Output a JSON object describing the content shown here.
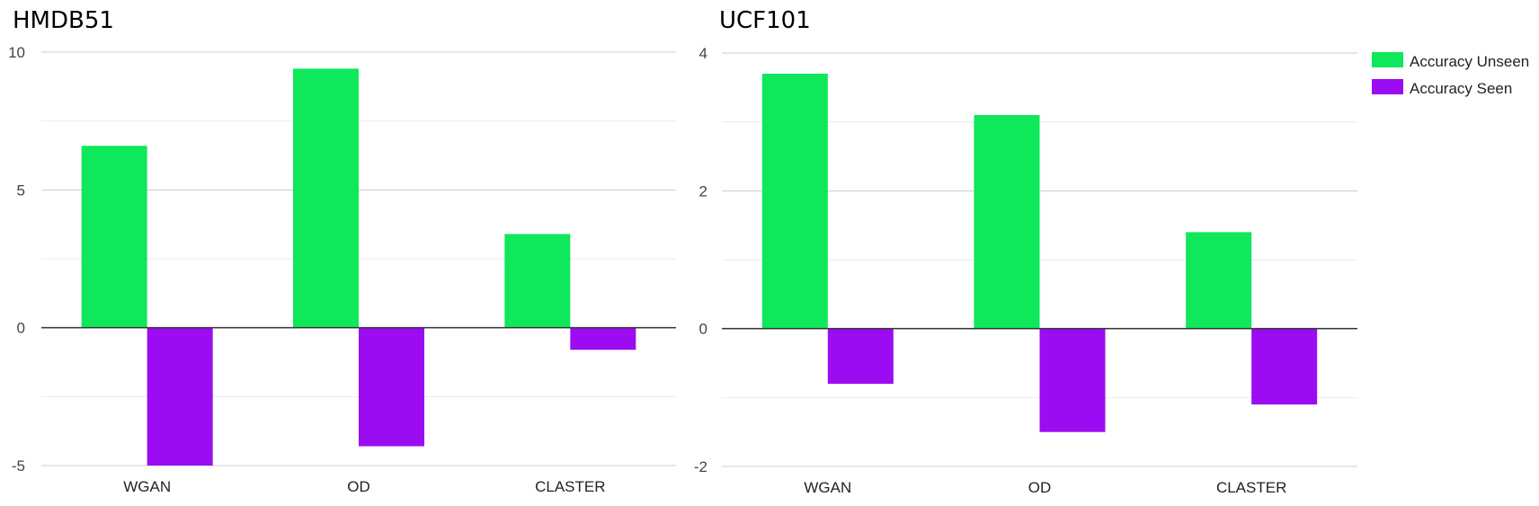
{
  "colors": {
    "accuracy_unseen": "#0ee85a",
    "accuracy_seen": "#9b0cf2",
    "grid_major": "#cccccc",
    "grid_minor": "#ebebeb",
    "zero_line": "#333333"
  },
  "legend": {
    "items": [
      {
        "label": "Accuracy Unseen",
        "color_key": "accuracy_unseen"
      },
      {
        "label": "Accuracy Seen",
        "color_key": "accuracy_seen"
      }
    ],
    "placement": "right"
  },
  "chart_data": [
    {
      "type": "bar",
      "title": "HMDB51",
      "categories": [
        "WGAN",
        "OD",
        "CLASTER"
      ],
      "series": [
        {
          "name": "Accuracy Unseen",
          "values": [
            6.6,
            9.4,
            3.4
          ]
        },
        {
          "name": "Accuracy Seen",
          "values": [
            -5.0,
            -4.3,
            -0.8
          ]
        }
      ],
      "ylim": [
        -5,
        10
      ],
      "yticks": [
        {
          "value": 10,
          "label": "10"
        },
        {
          "value": 5,
          "label": "5"
        },
        {
          "value": 0,
          "label": "0"
        },
        {
          "value": -5,
          "label": "-5"
        }
      ],
      "minor_gridlines": [
        7.5,
        2.5,
        -2.5
      ],
      "grid": true
    },
    {
      "type": "bar",
      "title": "UCF101",
      "categories": [
        "WGAN",
        "OD",
        "CLASTER"
      ],
      "series": [
        {
          "name": "Accuracy Unseen",
          "values": [
            3.7,
            3.1,
            1.4
          ]
        },
        {
          "name": "Accuracy Seen",
          "values": [
            -0.8,
            -1.5,
            -1.1
          ]
        }
      ],
      "ylim": [
        -2,
        4
      ],
      "yticks": [
        {
          "value": 4,
          "label": "4"
        },
        {
          "value": 2,
          "label": "2"
        },
        {
          "value": 0,
          "label": "0"
        },
        {
          "value": -2,
          "label": "-2"
        }
      ],
      "minor_gridlines": [
        3,
        1,
        -1
      ],
      "grid": true
    }
  ]
}
